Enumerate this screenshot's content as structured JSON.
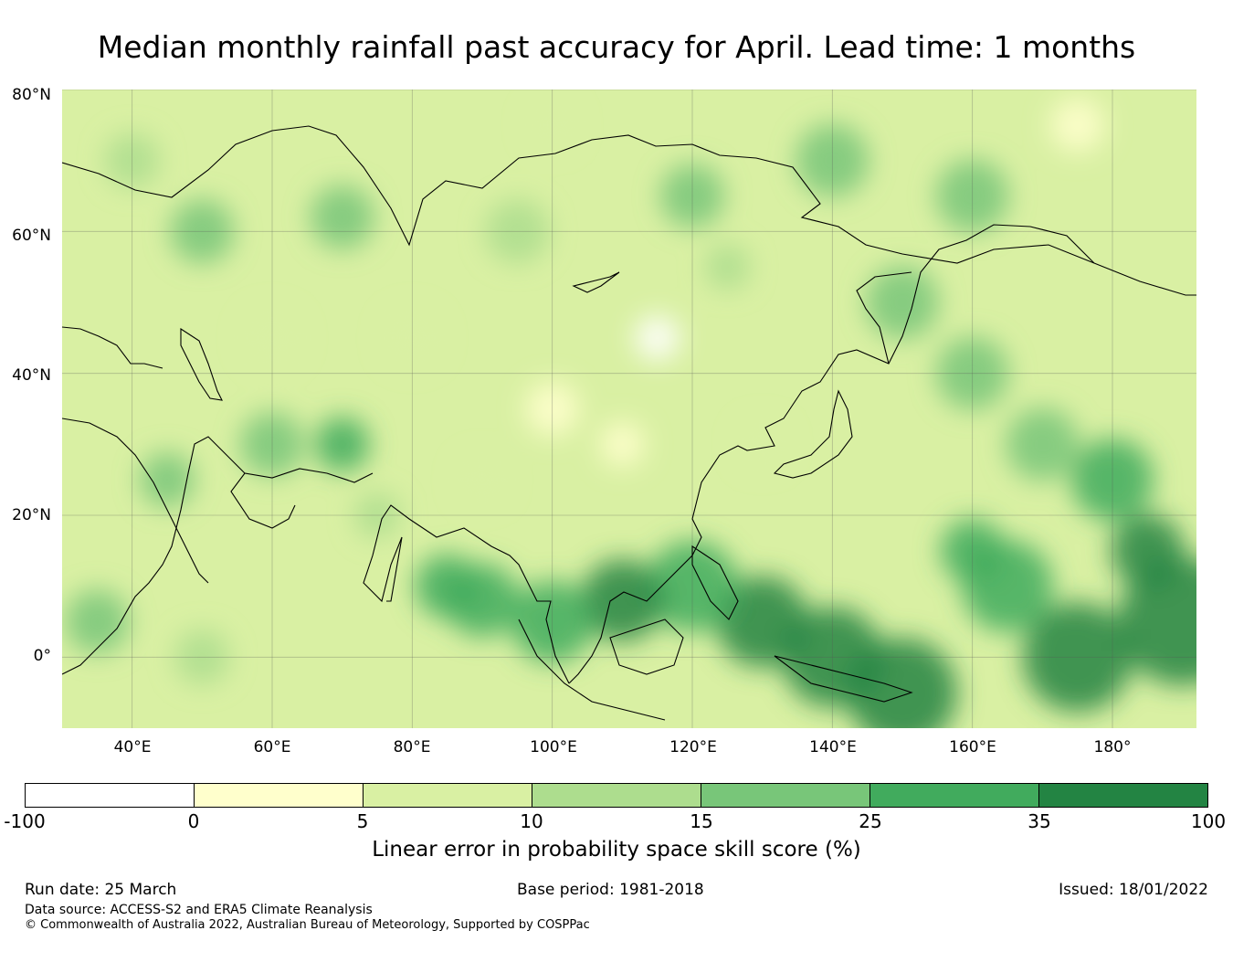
{
  "title": "Median monthly rainfall past accuracy for April. Lead time: 1 months",
  "map": {
    "lat_labels": [
      "80°N",
      "60°N",
      "40°N",
      "20°N",
      "0°"
    ],
    "lon_labels": [
      "40°E",
      "60°E",
      "80°E",
      "100°E",
      "120°E",
      "140°E",
      "160°E",
      "180°"
    ],
    "lat_range": [
      -10,
      80
    ],
    "lon_range": [
      30,
      192
    ],
    "gridlines": true
  },
  "colorbar": {
    "label": "Linear error in probability space skill score (%)",
    "ticks": [
      "-100",
      "0",
      "5",
      "10",
      "15",
      "25",
      "35",
      "100"
    ],
    "colors": [
      "#ffffff",
      "#ffffcc",
      "#d9f0a3",
      "#addd8e",
      "#78c679",
      "#41ab5d",
      "#238443"
    ]
  },
  "footer": {
    "run_date": "Run date: 25 March",
    "base_period": "Base period: 1981-2018",
    "issued": "Issued: 18/01/2022",
    "data_source": "Data source: ACCESS-S2 and ERA5 Climate Reanalysis",
    "copyright": "© Commonwealth of Australia 2022, Australian Bureau of Meteorology, Supported by COSPPac"
  }
}
